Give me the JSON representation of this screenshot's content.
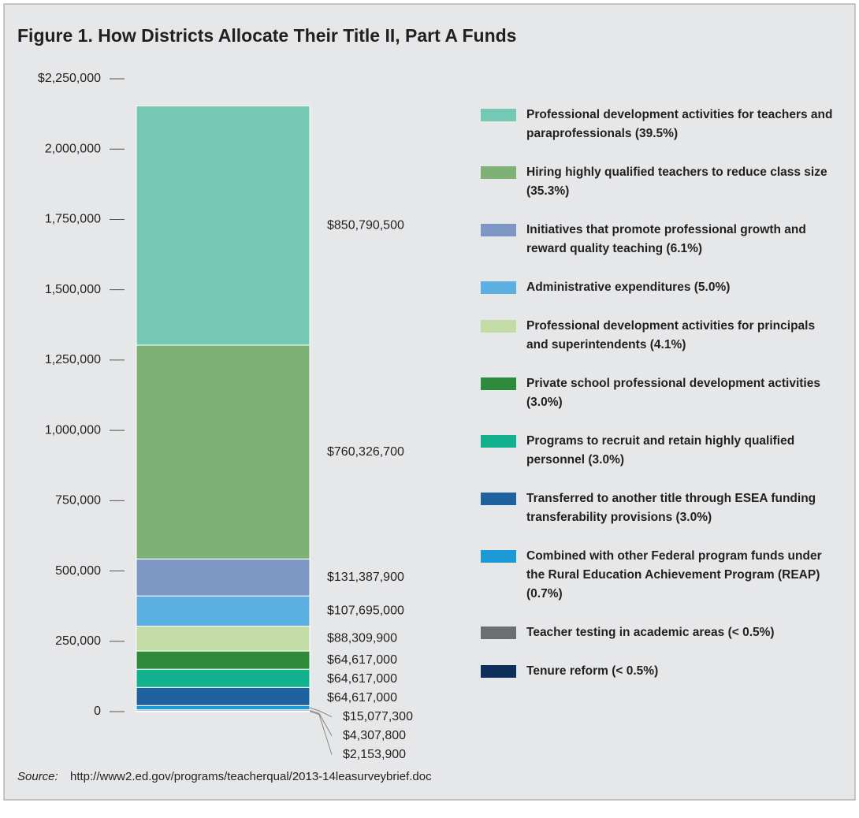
{
  "chart_data": {
    "type": "stacked-bar",
    "title": "Figure 1. How Districts Allocate Their Title II, Part A Funds",
    "source_label": "Source:",
    "source": "http://www2.ed.gov/programs/teacherqual/2013-14leasurveybrief.doc",
    "categories": [
      null
    ],
    "ylim": [
      0,
      2250000
    ],
    "yticks": [
      0,
      {
        "value": 250000,
        "label": "250,000"
      },
      {
        "value": 500000,
        "label": "500,000"
      },
      {
        "value": 750000,
        "label": "750,000"
      },
      {
        "value": 1000000,
        "label": "1,000,000"
      },
      {
        "value": 1250000,
        "label": "1,250,000"
      },
      {
        "value": 1500000,
        "label": "1,500,000"
      },
      {
        "value": 1750000,
        "label": "1,750,000"
      },
      {
        "value": 2000000,
        "label": "2,000,000"
      },
      {
        "value": 2250000,
        "label": "$2,250,000"
      }
    ],
    "series": [
      {
        "name": "Tenure reform (< 0.5%)",
        "color": "#0d2f5a",
        "values": [
          2153.9
        ],
        "value_labels": [
          "$2,153,900"
        ]
      },
      {
        "name": "Teacher testing in academic areas (< 0.5%)",
        "color": "#6d6e70",
        "values": [
          4307.8
        ],
        "value_labels": [
          "$4,307,800"
        ]
      },
      {
        "name": "Combined with other Federal program funds under the Rural Education Achievement Program (REAP) (0.7%)",
        "color": "#1a9ad6",
        "values": [
          15077.3
        ],
        "value_labels": [
          "$15,077,300"
        ]
      },
      {
        "name": "Transferred to another title through ESEA funding transferability provisions (3.0%)",
        "color": "#1f62a0",
        "values": [
          64617
        ],
        "value_labels": [
          "$64,617,000"
        ]
      },
      {
        "name": "Programs to recruit and retain highly qualified personnel (3.0%)",
        "color": "#12b08c",
        "values": [
          64617
        ],
        "value_labels": [
          "$64,617,000"
        ]
      },
      {
        "name": "Private school professional development activities (3.0%)",
        "color": "#2e8b3c",
        "values": [
          64617
        ],
        "value_labels": [
          "$64,617,000"
        ]
      },
      {
        "name": "Professional development activities for principals and superintendents (4.1%)",
        "color": "#c3dca6",
        "values": [
          88309.9
        ],
        "value_labels": [
          "$88,309,900"
        ]
      },
      {
        "name": "Administrative expenditures (5.0%)",
        "color": "#5bb0e1",
        "values": [
          107695
        ],
        "value_labels": [
          "$107,695,000"
        ]
      },
      {
        "name": "Initiatives that promote professional growth and reward quality teaching (6.1%)",
        "color": "#7f97c4",
        "values": [
          131387.9
        ],
        "value_labels": [
          "$131,387,900"
        ]
      },
      {
        "name": "Hiring highly qualified teachers to reduce class size (35.3%)",
        "color": "#7db176",
        "values": [
          760326.7
        ],
        "value_labels": [
          "$760,326,700"
        ]
      },
      {
        "name": "Professional development activities for teachers and paraprofessionals (39.5%)",
        "color": "#74c8b4",
        "values": [
          850790.5
        ],
        "value_labels": [
          "$850,790,500"
        ]
      }
    ]
  }
}
